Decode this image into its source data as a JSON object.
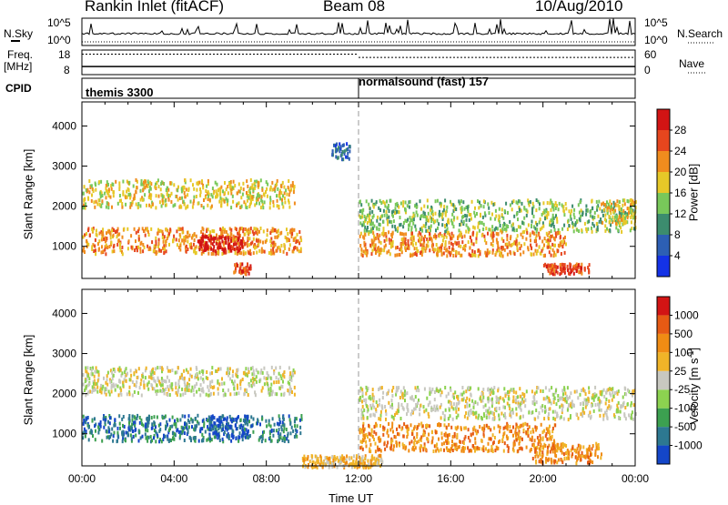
{
  "header": {
    "station": "Rankin Inlet (fitACF)",
    "beam": "Beam 08",
    "date": "10/Aug/2010"
  },
  "side_labels": {
    "nsky": "N.Sky",
    "freq": "Freq.",
    "freq_unit": "[MHz]",
    "cpid": "CPID",
    "nsearch": "N.Search",
    "nave": "Nave"
  },
  "nsky_panel": {
    "left_ticks": [
      "10^5",
      "10^0"
    ],
    "right_ticks": [
      "10^5",
      "10^0"
    ]
  },
  "freq_panel": {
    "left_ticks": [
      "18",
      "8"
    ],
    "right_ticks": [
      "60",
      "0"
    ],
    "freq_mhz": 11.3,
    "nave_segments": [
      {
        "start_hour": 0,
        "end_hour": 12,
        "nave": 50
      },
      {
        "start_hour": 12,
        "end_hour": 24,
        "nave": 42
      }
    ]
  },
  "cpid": [
    {
      "label": "themis 3300",
      "start_hour": 0
    },
    {
      "label": "normalsound (fast) 157",
      "start_hour": 12
    }
  ],
  "chart_data": [
    {
      "type": "heatmap",
      "panel": "power",
      "xlabel": "",
      "ylabel": "Slant Range [km]",
      "xlim": [
        0,
        24
      ],
      "ylim": [
        200,
        4600
      ],
      "yticks": [
        1000,
        2000,
        3000,
        4000
      ],
      "colorbar": {
        "label": "Power [dB]",
        "ticks": [
          "4",
          "8",
          "12",
          "16",
          "20",
          "24",
          "28"
        ],
        "colors": [
          "#1432e6",
          "#2d5fb4",
          "#3c8c6e",
          "#78c85a",
          "#e6c828",
          "#f08c1e",
          "#e6461e",
          "#d21414"
        ]
      },
      "regions": [
        {
          "t0": 0.0,
          "t1": 9.2,
          "r0": 2000,
          "r1": 2700,
          "level": 4
        },
        {
          "t0": 0.0,
          "t1": 9.5,
          "r0": 850,
          "r1": 1500,
          "level": 5
        },
        {
          "t0": 5.0,
          "t1": 7.0,
          "r0": 900,
          "r1": 1300,
          "level": 7
        },
        {
          "t0": 6.5,
          "t1": 7.3,
          "r0": 350,
          "r1": 600,
          "level": 6
        },
        {
          "t0": 10.8,
          "t1": 11.6,
          "r0": 3200,
          "r1": 3600,
          "level": 1
        },
        {
          "t0": 12.0,
          "t1": 24.0,
          "r0": 1400,
          "r1": 2200,
          "level": 3
        },
        {
          "t0": 12.0,
          "t1": 21.0,
          "r0": 800,
          "r1": 1400,
          "level": 5
        },
        {
          "t0": 20.0,
          "t1": 22.0,
          "r0": 350,
          "r1": 600,
          "level": 6
        },
        {
          "t0": 22.5,
          "t1": 24.0,
          "r0": 1600,
          "r1": 2200,
          "level": 4
        }
      ]
    },
    {
      "type": "heatmap",
      "panel": "velocity",
      "xlabel": "Time UT",
      "ylabel": "Slant Range [km]",
      "xlim": [
        0,
        24
      ],
      "ylim": [
        200,
        4600
      ],
      "yticks": [
        1000,
        2000,
        3000,
        4000
      ],
      "xticks": [
        "00:00",
        "04:00",
        "08:00",
        "12:00",
        "16:00",
        "20:00",
        "00:00"
      ],
      "colorbar": {
        "label": "Velocity [m s^-1]",
        "ticks": [
          "1000",
          "500",
          "100",
          "25",
          "-25",
          "-100",
          "-500",
          "-1000"
        ],
        "colors": [
          "#1446c8",
          "#2d7891",
          "#3ca050",
          "#8cd250",
          "#c8c8c0",
          "#f0b428",
          "#f08c14",
          "#e65a14",
          "#d21414"
        ]
      },
      "regions": [
        {
          "t0": 0.0,
          "t1": 9.2,
          "r0": 2000,
          "r1": 2700,
          "level": 4
        },
        {
          "t0": 0.0,
          "t1": 9.5,
          "r0": 850,
          "r1": 1500,
          "level": 1
        },
        {
          "t0": 5.5,
          "t1": 7.2,
          "r0": 900,
          "r1": 1500,
          "level": 0
        },
        {
          "t0": 12.0,
          "t1": 24.0,
          "r0": 1400,
          "r1": 2200,
          "level": 4
        },
        {
          "t0": 12.0,
          "t1": 20.5,
          "r0": 600,
          "r1": 1300,
          "level": 6
        },
        {
          "t0": 19.5,
          "t1": 22.5,
          "r0": 300,
          "r1": 800,
          "level": 6
        },
        {
          "t0": 9.5,
          "t1": 13.0,
          "r0": 200,
          "r1": 500,
          "level": 5
        }
      ]
    }
  ]
}
